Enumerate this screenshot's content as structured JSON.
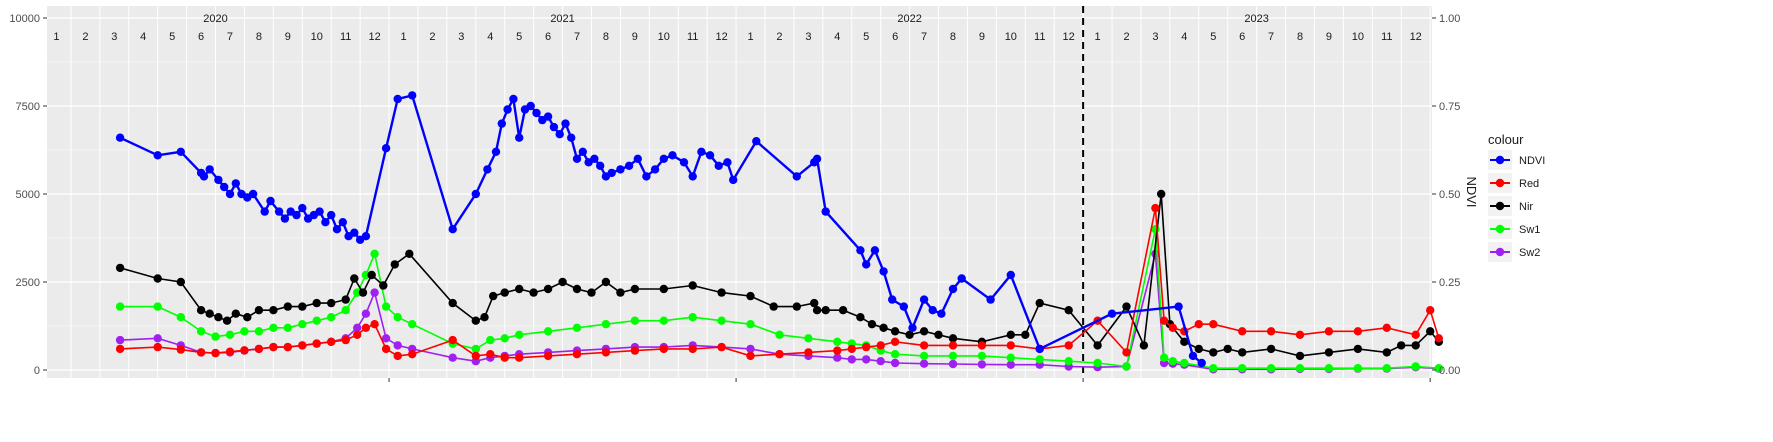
{
  "chart_data": {
    "type": "line",
    "ylabel_right": "NDVI",
    "ylim_left": [
      0,
      10000
    ],
    "ylim_right": [
      0,
      1.0
    ],
    "yticks_left": [
      "0",
      "2500",
      "5000",
      "7500",
      "10000"
    ],
    "yticks_right": [
      "0.00",
      "0.25",
      "0.50",
      "0.75",
      "1.00"
    ],
    "years": [
      "2020",
      "2021",
      "2022",
      "2023"
    ],
    "months": [
      "1",
      "2",
      "3",
      "4",
      "5",
      "6",
      "7",
      "8",
      "9",
      "10",
      "11",
      "12"
    ],
    "vline_month_index": 36,
    "grid": true,
    "legend": {
      "title": "colour",
      "placement": "right",
      "entries": [
        {
          "label": "NDVI",
          "color": "#0000ff"
        },
        {
          "label": "Red",
          "color": "#ff0000"
        },
        {
          "label": "Nir",
          "color": "#000000"
        },
        {
          "label": "Sw1",
          "color": "#00ff00"
        },
        {
          "label": "Sw2",
          "color": "#a020f0"
        }
      ]
    },
    "series": [
      {
        "name": "NDVI",
        "color": "#0000ff",
        "axis": "right",
        "x": [
          2.2,
          3.5,
          4.3,
          5.0,
          5.1,
          5.3,
          5.6,
          5.8,
          6.0,
          6.2,
          6.4,
          6.6,
          6.8,
          7.2,
          7.4,
          7.7,
          7.9,
          8.1,
          8.3,
          8.5,
          8.7,
          8.9,
          9.1,
          9.3,
          9.5,
          9.7,
          9.9,
          10.1,
          10.3,
          10.5,
          10.7,
          11.4,
          11.8,
          12.3,
          13.7,
          14.5,
          14.9,
          15.2,
          15.4,
          15.6,
          15.8,
          16.0,
          16.2,
          16.4,
          16.6,
          16.8,
          17.0,
          17.2,
          17.4,
          17.6,
          17.8,
          18.0,
          18.2,
          18.4,
          18.6,
          18.8,
          19.0,
          19.2,
          19.5,
          19.8,
          20.1,
          20.4,
          20.7,
          21.0,
          21.3,
          21.7,
          22.0,
          22.3,
          22.6,
          22.9,
          23.2,
          23.4,
          24.2,
          25.6,
          26.2,
          26.3,
          26.6,
          27.8,
          28.0,
          28.3,
          28.6,
          28.9,
          29.3,
          29.6,
          30.0,
          30.3,
          30.6,
          31.0,
          31.3,
          32.3,
          33.0,
          34.0,
          36.5,
          38.8,
          39.3,
          39.6
        ],
        "y": [
          0.66,
          0.61,
          0.62,
          0.56,
          0.55,
          0.57,
          0.54,
          0.52,
          0.5,
          0.53,
          0.5,
          0.49,
          0.5,
          0.45,
          0.48,
          0.45,
          0.43,
          0.45,
          0.44,
          0.46,
          0.43,
          0.44,
          0.45,
          0.42,
          0.44,
          0.4,
          0.42,
          0.38,
          0.39,
          0.37,
          0.38,
          0.63,
          0.77,
          0.78,
          0.4,
          0.5,
          0.57,
          0.62,
          0.7,
          0.74,
          0.77,
          0.66,
          0.74,
          0.75,
          0.73,
          0.71,
          0.72,
          0.69,
          0.67,
          0.7,
          0.66,
          0.6,
          0.62,
          0.59,
          0.6,
          0.58,
          0.55,
          0.56,
          0.57,
          0.58,
          0.6,
          0.55,
          0.57,
          0.6,
          0.61,
          0.59,
          0.55,
          0.62,
          0.61,
          0.58,
          0.59,
          0.54,
          0.65,
          0.55,
          0.59,
          0.6,
          0.45,
          0.34,
          0.3,
          0.34,
          0.28,
          0.2,
          0.18,
          0.12,
          0.2,
          0.17,
          0.16,
          0.23,
          0.26,
          0.2,
          0.27,
          0.06,
          0.16,
          0.18,
          0.04,
          0.02
        ]
      },
      {
        "name": "Red",
        "color": "#ff0000",
        "axis": "left",
        "x": [
          2.2,
          3.5,
          4.3,
          5.0,
          5.5,
          6.0,
          6.5,
          7.0,
          7.5,
          8.0,
          8.5,
          9.0,
          9.5,
          10.0,
          10.4,
          10.7,
          11.0,
          11.4,
          11.8,
          12.3,
          13.7,
          14.5,
          15.0,
          15.5,
          16.0,
          17.0,
          18.0,
          19.0,
          20.0,
          21.0,
          22.0,
          23.0,
          24.0,
          25.0,
          26.0,
          27.0,
          27.5,
          28.0,
          28.5,
          29.0,
          30.0,
          31.0,
          32.0,
          33.0,
          34.0,
          35.0,
          36.0,
          37.0,
          38.0,
          38.3,
          38.6,
          39.0,
          39.5,
          40.0,
          41.0,
          42.0,
          43.0,
          44.0,
          45.0,
          46.0,
          47.0,
          47.5,
          47.8
        ],
        "y": [
          600,
          650,
          580,
          500,
          480,
          520,
          560,
          600,
          650,
          650,
          700,
          750,
          800,
          850,
          1000,
          1200,
          1300,
          600,
          400,
          450,
          850,
          400,
          450,
          350,
          350,
          400,
          450,
          500,
          550,
          600,
          600,
          650,
          400,
          450,
          500,
          550,
          600,
          650,
          700,
          800,
          700,
          700,
          700,
          700,
          600,
          700,
          1400,
          500,
          4600,
          1400,
          1200,
          1100,
          1300,
          1300,
          1100,
          1100,
          1000,
          1100,
          1100,
          1200,
          1000,
          1700,
          900
        ]
      },
      {
        "name": "Nir",
        "color": "#000000",
        "axis": "left",
        "x": [
          2.2,
          3.5,
          4.3,
          5.0,
          5.3,
          5.6,
          5.9,
          6.2,
          6.6,
          7.0,
          7.5,
          8.0,
          8.5,
          9.0,
          9.5,
          10.0,
          10.3,
          10.6,
          10.9,
          11.3,
          11.7,
          12.2,
          13.7,
          14.5,
          14.8,
          15.1,
          15.5,
          16.0,
          16.5,
          17.0,
          17.5,
          18.0,
          18.5,
          19.0,
          19.5,
          20.0,
          21.0,
          22.0,
          23.0,
          24.0,
          24.8,
          25.6,
          26.2,
          26.3,
          26.6,
          27.2,
          27.8,
          28.2,
          28.6,
          29.0,
          29.5,
          30.0,
          30.5,
          31.0,
          32.0,
          33.0,
          33.5,
          34.0,
          35.0,
          36.0,
          37.0,
          37.6,
          38.2,
          38.5,
          39.0,
          39.5,
          40.0,
          40.5,
          41.0,
          42.0,
          43.0,
          44.0,
          45.0,
          46.0,
          46.5,
          47.0,
          47.5,
          47.8
        ],
        "y": [
          2900,
          2600,
          2500,
          1700,
          1600,
          1500,
          1400,
          1600,
          1500,
          1700,
          1700,
          1800,
          1800,
          1900,
          1900,
          2000,
          2600,
          2200,
          2700,
          2400,
          3000,
          3300,
          1900,
          1400,
          1500,
          2100,
          2200,
          2300,
          2200,
          2300,
          2500,
          2300,
          2200,
          2500,
          2200,
          2300,
          2300,
          2400,
          2200,
          2100,
          1800,
          1800,
          1900,
          1700,
          1700,
          1700,
          1500,
          1300,
          1200,
          1100,
          1000,
          1100,
          1000,
          900,
          800,
          1000,
          1000,
          1900,
          1700,
          700,
          1800,
          700,
          5000,
          1300,
          800,
          600,
          500,
          600,
          500,
          600,
          400,
          500,
          600,
          500,
          700,
          700,
          1100,
          800
        ]
      },
      {
        "name": "Sw1",
        "color": "#00ff00",
        "axis": "left",
        "x": [
          2.2,
          3.5,
          4.3,
          5.0,
          5.5,
          6.0,
          6.5,
          7.0,
          7.5,
          8.0,
          8.5,
          9.0,
          9.5,
          10.0,
          10.4,
          10.7,
          11.0,
          11.4,
          11.8,
          12.3,
          13.7,
          14.5,
          15.0,
          15.5,
          16.0,
          17.0,
          18.0,
          19.0,
          20.0,
          21.0,
          22.0,
          23.0,
          24.0,
          25.0,
          26.0,
          27.0,
          27.5,
          28.0,
          28.5,
          29.0,
          30.0,
          31.0,
          32.0,
          33.0,
          34.0,
          35.0,
          36.0,
          37.0,
          38.0,
          38.3,
          38.6,
          39.0,
          40.0,
          41.0,
          42.0,
          43.0,
          44.0,
          45.0,
          46.0,
          47.0,
          47.8
        ],
        "y": [
          1800,
          1800,
          1500,
          1100,
          950,
          1000,
          1100,
          1100,
          1200,
          1200,
          1300,
          1400,
          1500,
          1700,
          2200,
          2700,
          3300,
          1800,
          1500,
          1300,
          750,
          600,
          850,
          900,
          1000,
          1100,
          1200,
          1300,
          1400,
          1400,
          1500,
          1400,
          1300,
          1000,
          900,
          800,
          750,
          700,
          550,
          450,
          400,
          400,
          400,
          350,
          300,
          250,
          200,
          100,
          4000,
          350,
          250,
          200,
          50,
          50,
          50,
          50,
          50,
          50,
          50,
          100,
          50
        ]
      },
      {
        "name": "Sw2",
        "color": "#a020f0",
        "axis": "left",
        "x": [
          2.2,
          3.5,
          4.3,
          5.0,
          5.5,
          6.0,
          6.5,
          7.0,
          7.5,
          8.0,
          8.5,
          9.0,
          9.5,
          10.0,
          10.4,
          10.7,
          11.0,
          11.4,
          11.8,
          12.3,
          13.7,
          14.5,
          15.0,
          15.5,
          16.0,
          17.0,
          18.0,
          19.0,
          20.0,
          21.0,
          22.0,
          23.0,
          24.0,
          25.0,
          26.0,
          27.0,
          27.5,
          28.0,
          28.5,
          29.0,
          30.0,
          31.0,
          32.0,
          33.0,
          34.0,
          35.0,
          36.0,
          37.0,
          38.0,
          38.3,
          38.6,
          39.0,
          40.0,
          41.0,
          42.0,
          43.0,
          44.0,
          45.0,
          46.0,
          47.0,
          47.8
        ],
        "y": [
          850,
          900,
          700,
          500,
          480,
          500,
          550,
          600,
          650,
          650,
          700,
          750,
          800,
          900,
          1200,
          1600,
          2200,
          900,
          700,
          600,
          350,
          250,
          350,
          400,
          450,
          500,
          550,
          600,
          650,
          650,
          700,
          650,
          600,
          450,
          400,
          350,
          300,
          300,
          250,
          200,
          180,
          170,
          160,
          150,
          150,
          100,
          80,
          100,
          3300,
          200,
          180,
          150,
          20,
          20,
          20,
          30,
          30,
          40,
          40,
          80,
          40
        ]
      }
    ]
  }
}
